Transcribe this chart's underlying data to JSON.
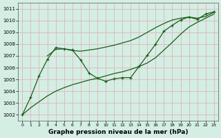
{
  "xlabel": "Graphe pression niveau de la mer (hPa)",
  "bg_color": "#d4eee4",
  "grid_color": "#ddbcbc",
  "line_color": "#1a5c1a",
  "xlim": [
    -0.5,
    23.5
  ],
  "ylim": [
    1001.5,
    1011.5
  ],
  "yticks": [
    1002,
    1003,
    1004,
    1005,
    1006,
    1007,
    1008,
    1009,
    1010,
    1011
  ],
  "xticks": [
    0,
    1,
    2,
    3,
    4,
    5,
    6,
    7,
    8,
    9,
    10,
    11,
    12,
    13,
    14,
    15,
    16,
    17,
    18,
    19,
    20,
    21,
    22,
    23
  ],
  "series1_x": [
    0,
    1,
    2,
    3,
    4,
    5,
    6,
    7,
    8,
    9,
    10,
    11,
    12,
    13,
    14,
    15,
    16,
    17,
    18,
    19,
    20,
    21,
    22,
    23
  ],
  "series1_y": [
    1002.0,
    1003.5,
    1005.3,
    1006.7,
    1007.7,
    1007.6,
    1007.5,
    1006.65,
    1005.55,
    1005.1,
    1004.85,
    1005.05,
    1005.15,
    1005.15,
    1006.1,
    1007.05,
    1008.0,
    1009.1,
    1009.6,
    1010.05,
    1010.3,
    1010.1,
    1010.55,
    1010.75
  ],
  "series2_x": [
    3,
    4,
    5,
    6,
    7,
    8,
    9,
    10,
    11,
    12,
    13,
    14,
    15,
    16,
    17,
    18,
    19,
    20,
    21,
    22,
    23
  ],
  "series2_y": [
    1007.0,
    1007.55,
    1007.6,
    1007.45,
    1007.4,
    1007.5,
    1007.6,
    1007.75,
    1007.9,
    1008.1,
    1008.3,
    1008.6,
    1009.0,
    1009.4,
    1009.75,
    1010.05,
    1010.2,
    1010.3,
    1010.2,
    1010.35,
    1010.7
  ],
  "series3_x": [
    0,
    1,
    2,
    3,
    4,
    5,
    6,
    7,
    8,
    9,
    10,
    11,
    12,
    13,
    14,
    15,
    16,
    17,
    18,
    19,
    20,
    21,
    22,
    23
  ],
  "series3_y": [
    1002.0,
    1002.6,
    1003.1,
    1003.6,
    1004.0,
    1004.3,
    1004.55,
    1004.75,
    1004.95,
    1005.1,
    1005.3,
    1005.5,
    1005.65,
    1005.85,
    1006.1,
    1006.4,
    1006.85,
    1007.5,
    1008.15,
    1008.85,
    1009.45,
    1009.85,
    1010.2,
    1010.55
  ]
}
